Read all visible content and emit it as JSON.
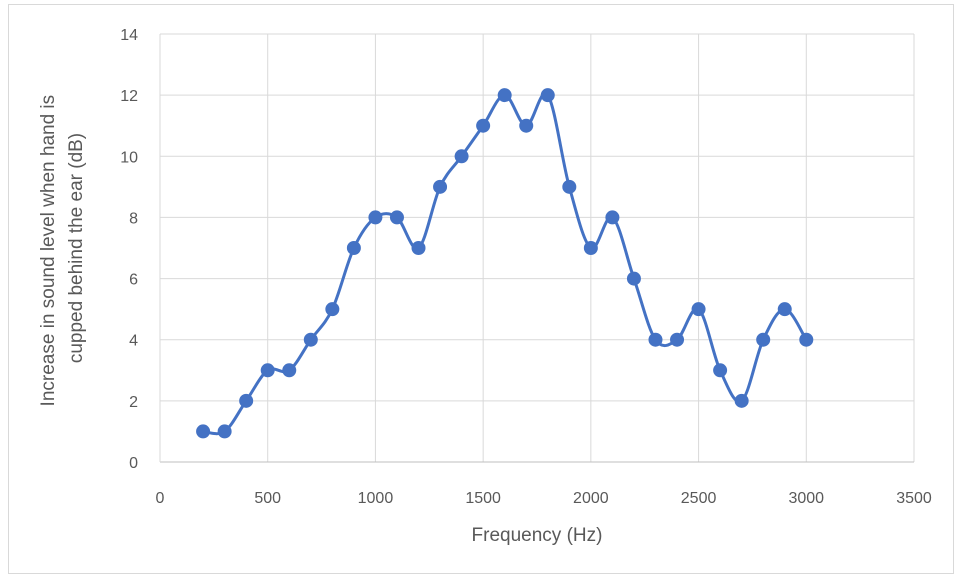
{
  "chart_data": {
    "type": "line",
    "title": "",
    "xlabel": "Frequency (Hz)",
    "ylabel_lines": [
      "Increase in sound level when hand is",
      "cupped behind the ear (dB)"
    ],
    "xlim": [
      0,
      3500
    ],
    "ylim": [
      0,
      14
    ],
    "xticks": [
      0,
      500,
      1000,
      1500,
      2000,
      2500,
      3000,
      3500
    ],
    "yticks": [
      0,
      2,
      4,
      6,
      8,
      10,
      12,
      14
    ],
    "grid": true,
    "smooth": true,
    "legend": "none",
    "series": [
      {
        "color": "#4472c4",
        "x": [
          200,
          300,
          400,
          500,
          600,
          700,
          800,
          900,
          1000,
          1100,
          1200,
          1300,
          1400,
          1500,
          1600,
          1700,
          1800,
          1900,
          2000,
          2100,
          2200,
          2300,
          2400,
          2500,
          2600,
          2700,
          2800,
          2900,
          3000
        ],
        "y": [
          1,
          1,
          2,
          3,
          3,
          4,
          5,
          7,
          8,
          8,
          7,
          9,
          10,
          11,
          12,
          11,
          12,
          9,
          7,
          8,
          6,
          4,
          4,
          5,
          3,
          2,
          4,
          5,
          4
        ]
      }
    ]
  }
}
